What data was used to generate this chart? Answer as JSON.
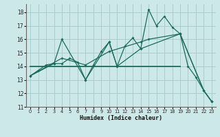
{
  "xlabel": "Humidex (Indice chaleur)",
  "bg_color": "#cce8e8",
  "grid_color": "#aacccc",
  "line_color": "#1a6b5a",
  "xlim": [
    -0.5,
    23.5
  ],
  "ylim": [
    11,
    18.6
  ],
  "yticks": [
    11,
    12,
    13,
    14,
    15,
    16,
    17,
    18
  ],
  "xticks": [
    0,
    1,
    2,
    3,
    4,
    5,
    6,
    7,
    8,
    9,
    10,
    11,
    12,
    13,
    14,
    15,
    16,
    17,
    18,
    19,
    20,
    21,
    22,
    23
  ],
  "series1_x": [
    0,
    1,
    2,
    3,
    4,
    5,
    6,
    7,
    8,
    9,
    10,
    11,
    12,
    13,
    14,
    15,
    16,
    17,
    18,
    19,
    20,
    21,
    22,
    23
  ],
  "series1_y": [
    13.3,
    13.7,
    14.1,
    14.2,
    14.2,
    14.6,
    14.3,
    13.0,
    14.1,
    15.1,
    15.8,
    14.0,
    15.5,
    16.1,
    15.3,
    18.2,
    17.0,
    17.7,
    16.9,
    16.4,
    14.0,
    13.2,
    12.2,
    11.4
  ],
  "series2_x": [
    0,
    3,
    4,
    7,
    10,
    11,
    14,
    19,
    22,
    23
  ],
  "series2_y": [
    13.3,
    14.2,
    16.0,
    13.0,
    15.8,
    14.0,
    15.3,
    16.4,
    12.2,
    11.4
  ],
  "series3_x": [
    0,
    19
  ],
  "series3_y": [
    14.0,
    14.0
  ],
  "series4_x": [
    0,
    4,
    7,
    10,
    14,
    15,
    19,
    22,
    23
  ],
  "series4_y": [
    13.3,
    14.6,
    14.1,
    15.1,
    15.8,
    16.0,
    16.4,
    12.2,
    11.4
  ]
}
